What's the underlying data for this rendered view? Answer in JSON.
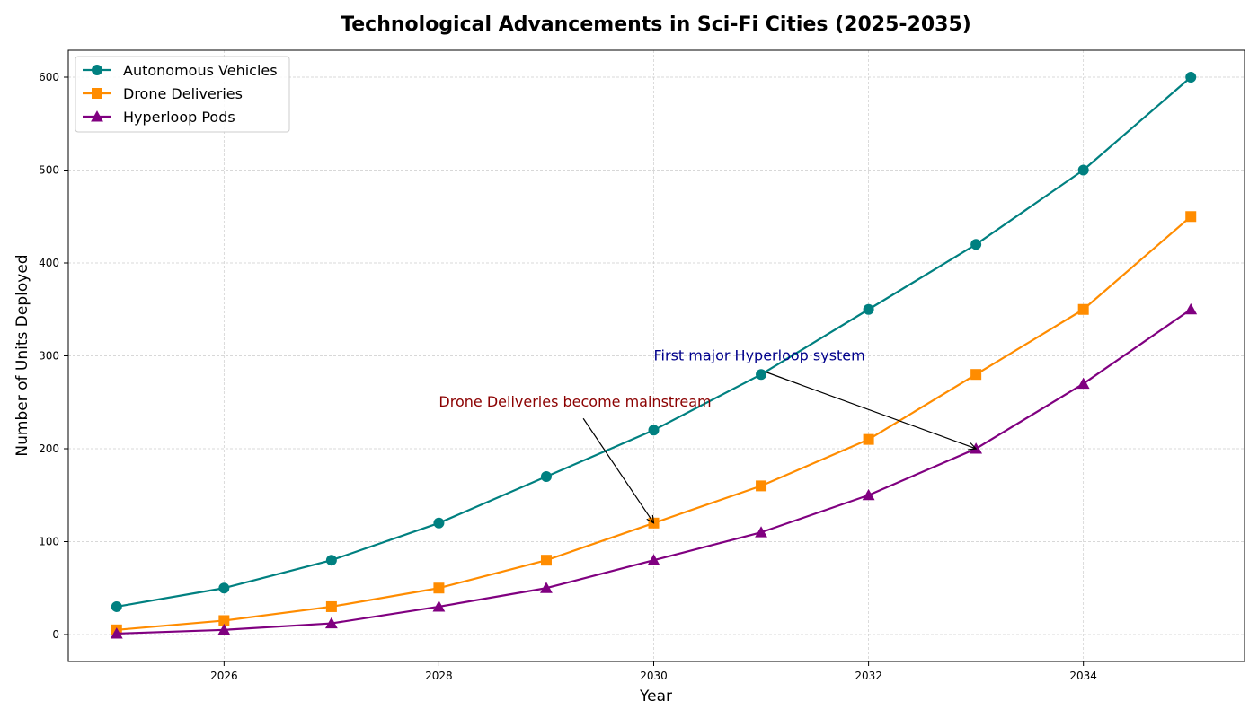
{
  "chart_data": {
    "type": "line",
    "title": "Technological Advancements in Sci-Fi Cities (2025-2035)",
    "xlabel": "Year",
    "ylabel": "Number of Units Deployed",
    "x": [
      2025,
      2026,
      2027,
      2028,
      2029,
      2030,
      2031,
      2032,
      2033,
      2034,
      2035
    ],
    "xlim": [
      2024.55,
      2035.5
    ],
    "ylim": [
      -29,
      629
    ],
    "xticks": [
      2026,
      2028,
      2030,
      2032,
      2034
    ],
    "yticks": [
      0,
      100,
      200,
      300,
      400,
      500,
      600
    ],
    "grid": true,
    "legend_position": "top-left",
    "series": [
      {
        "name": "Autonomous Vehicles",
        "color": "#008080",
        "marker": "circle",
        "values": [
          30,
          50,
          80,
          120,
          170,
          220,
          280,
          350,
          420,
          500,
          600
        ]
      },
      {
        "name": "Drone Deliveries",
        "color": "#ff8c00",
        "marker": "square",
        "values": [
          5,
          15,
          30,
          50,
          80,
          120,
          160,
          210,
          280,
          350,
          450
        ]
      },
      {
        "name": "Hyperloop Pods",
        "color": "#800080",
        "marker": "triangle",
        "values": [
          1,
          5,
          12,
          30,
          50,
          80,
          110,
          150,
          200,
          270,
          350
        ]
      }
    ],
    "annotations": [
      {
        "text": "Drone Deliveries become mainstream",
        "color": "#8b0000",
        "point": [
          2030,
          120
        ],
        "text_at": [
          2028,
          250
        ]
      },
      {
        "text": "First major Hyperloop system",
        "color": "#00008b",
        "point": [
          2033,
          200
        ],
        "text_at": [
          2030,
          300
        ]
      }
    ]
  }
}
